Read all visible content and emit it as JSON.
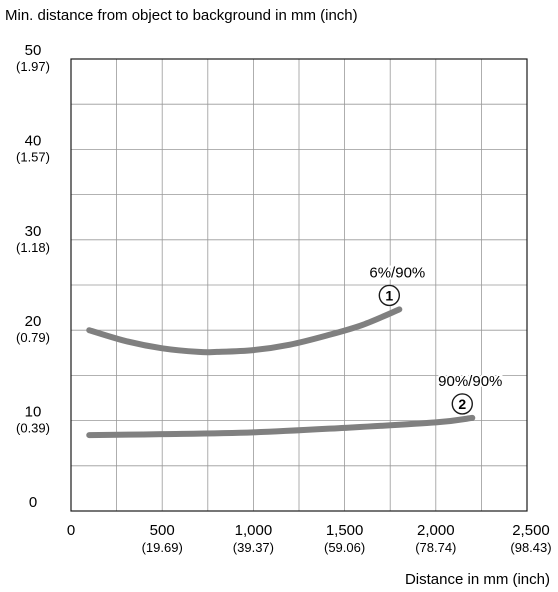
{
  "chart_data": {
    "type": "line",
    "title": "",
    "ylabel": "Min. distance from object to background in mm (inch)",
    "xlabel": "Distance in mm (inch)",
    "xlim": [
      0,
      2500
    ],
    "ylim": [
      0,
      50
    ],
    "grid": true,
    "x_ticks": [
      {
        "value": 0,
        "label": "0",
        "sub": ""
      },
      {
        "value": 500,
        "label": "500",
        "sub": "(19.69)"
      },
      {
        "value": 1000,
        "label": "1,000",
        "sub": "(39.37)"
      },
      {
        "value": 1500,
        "label": "1,500",
        "sub": "(59.06)"
      },
      {
        "value": 2000,
        "label": "2,000",
        "sub": "(78.74)"
      },
      {
        "value": 2500,
        "label": "2,500",
        "sub": "(98.43)"
      }
    ],
    "y_ticks": [
      {
        "value": 0,
        "label": "0",
        "sub": ""
      },
      {
        "value": 10,
        "label": "10",
        "sub": "(0.39)"
      },
      {
        "value": 20,
        "label": "20",
        "sub": "(0.79)"
      },
      {
        "value": 30,
        "label": "30",
        "sub": "(1.18)"
      },
      {
        "value": 40,
        "label": "40",
        "sub": "(1.57)"
      },
      {
        "value": 50,
        "label": "50",
        "sub": "(1.97)"
      }
    ],
    "series": [
      {
        "name": "6%/90%",
        "marker": "①",
        "x": [
          100,
          300,
          500,
          700,
          800,
          1000,
          1200,
          1400,
          1600,
          1800
        ],
        "y": [
          20,
          18.8,
          18.0,
          17.6,
          17.6,
          17.8,
          18.4,
          19.4,
          20.6,
          22.3
        ]
      },
      {
        "name": "90%/90%",
        "marker": "②",
        "x": [
          100,
          500,
          1000,
          1500,
          2000,
          2200
        ],
        "y": [
          8.4,
          8.5,
          8.7,
          9.2,
          9.8,
          10.3
        ]
      }
    ],
    "colors": {
      "curve": "#808080",
      "grid": "#999999",
      "frame": "#1a1a1a"
    }
  }
}
